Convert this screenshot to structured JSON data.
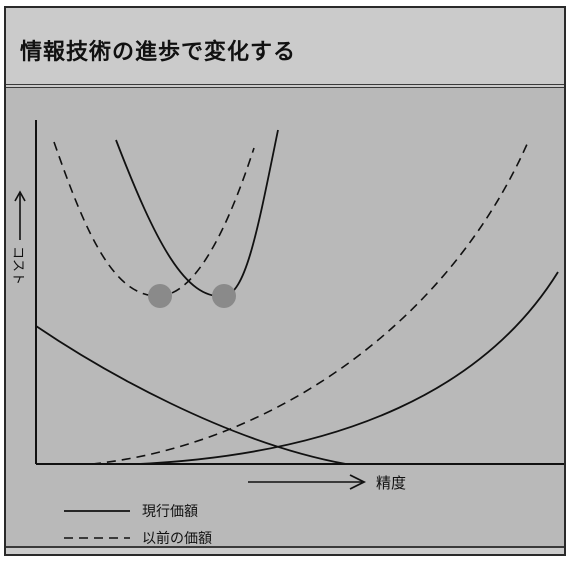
{
  "title": "情報技術の進歩で変化する",
  "axes": {
    "y_label": "コスト",
    "x_label": "精度"
  },
  "legend": [
    {
      "label": "現行価額",
      "line_style": "solid"
    },
    {
      "label": "以前の価額",
      "line_style": "dashed"
    }
  ],
  "optimum_points": [
    {
      "series": "以前の価額",
      "marker_color": "#8a8a8a"
    },
    {
      "series": "現行価額",
      "marker_color": "#8a8a8a"
    }
  ],
  "colors": {
    "background": "#b9b9b9",
    "title_band": "#cbcbcb",
    "ink": "#111111",
    "marker": "#8a8a8a"
  }
}
